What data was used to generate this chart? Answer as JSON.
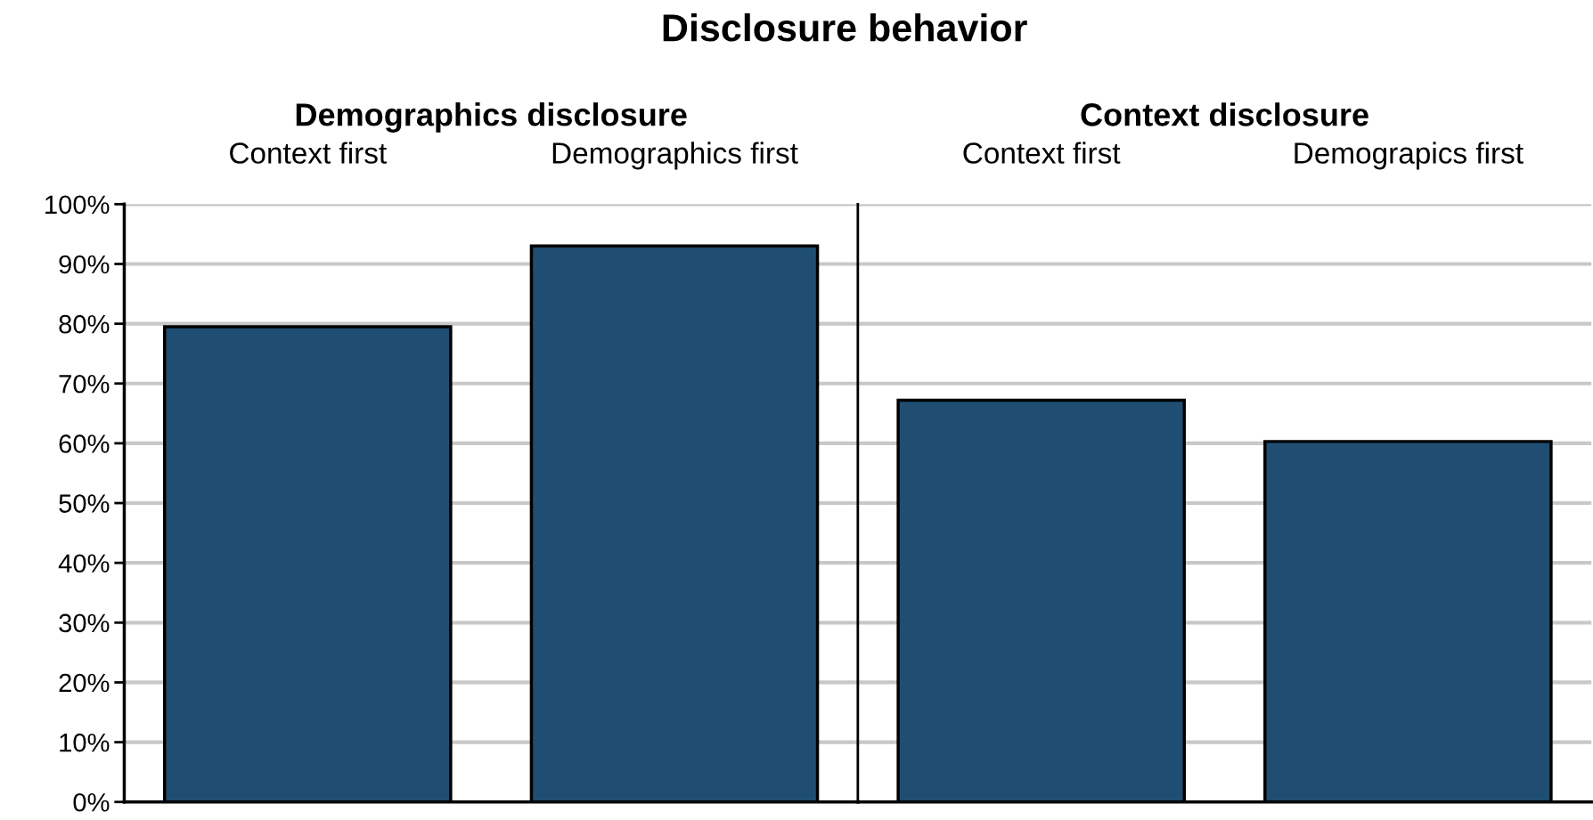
{
  "chart_data": [
    {
      "type": "bar",
      "title": "Disclosure behavior",
      "subtitle": "Demographics disclosure",
      "categories": [
        "Context first",
        "Demographics first"
      ],
      "values": [
        79.5,
        93.0
      ],
      "color": "#1f4e72",
      "ylim": [
        0,
        100
      ],
      "yticks": [
        {
          "value": 0,
          "label": "0%"
        },
        {
          "value": 10,
          "label": "10%"
        },
        {
          "value": 20,
          "label": "20%"
        },
        {
          "value": 30,
          "label": "30%"
        },
        {
          "value": 40,
          "label": "40%"
        },
        {
          "value": 50,
          "label": "50%"
        },
        {
          "value": 60,
          "label": "60%"
        },
        {
          "value": 70,
          "label": "70%"
        },
        {
          "value": 80,
          "label": "80%"
        },
        {
          "value": 90,
          "label": "90%"
        },
        {
          "value": 100,
          "label": "100%"
        }
      ],
      "grid": "y"
    },
    {
      "type": "bar",
      "subtitle": "Context disclosure",
      "categories": [
        "Context first",
        "Demograpics first"
      ],
      "values": [
        67.2,
        60.3
      ],
      "color": "#1f4e72",
      "ylim": [
        0,
        100
      ],
      "yticks": [
        {
          "value": 0,
          "label": null
        },
        {
          "value": 10,
          "label": null
        },
        {
          "value": 20,
          "label": null
        },
        {
          "value": 30,
          "label": null
        },
        {
          "value": 40,
          "label": null
        },
        {
          "value": 50,
          "label": null
        },
        {
          "value": 60,
          "label": null
        },
        {
          "value": 70,
          "label": null
        },
        {
          "value": 80,
          "label": null
        },
        {
          "value": 90,
          "label": null
        },
        {
          "value": 100,
          "label": null
        }
      ],
      "grid": "y",
      "tick_labels": "x"
    }
  ]
}
